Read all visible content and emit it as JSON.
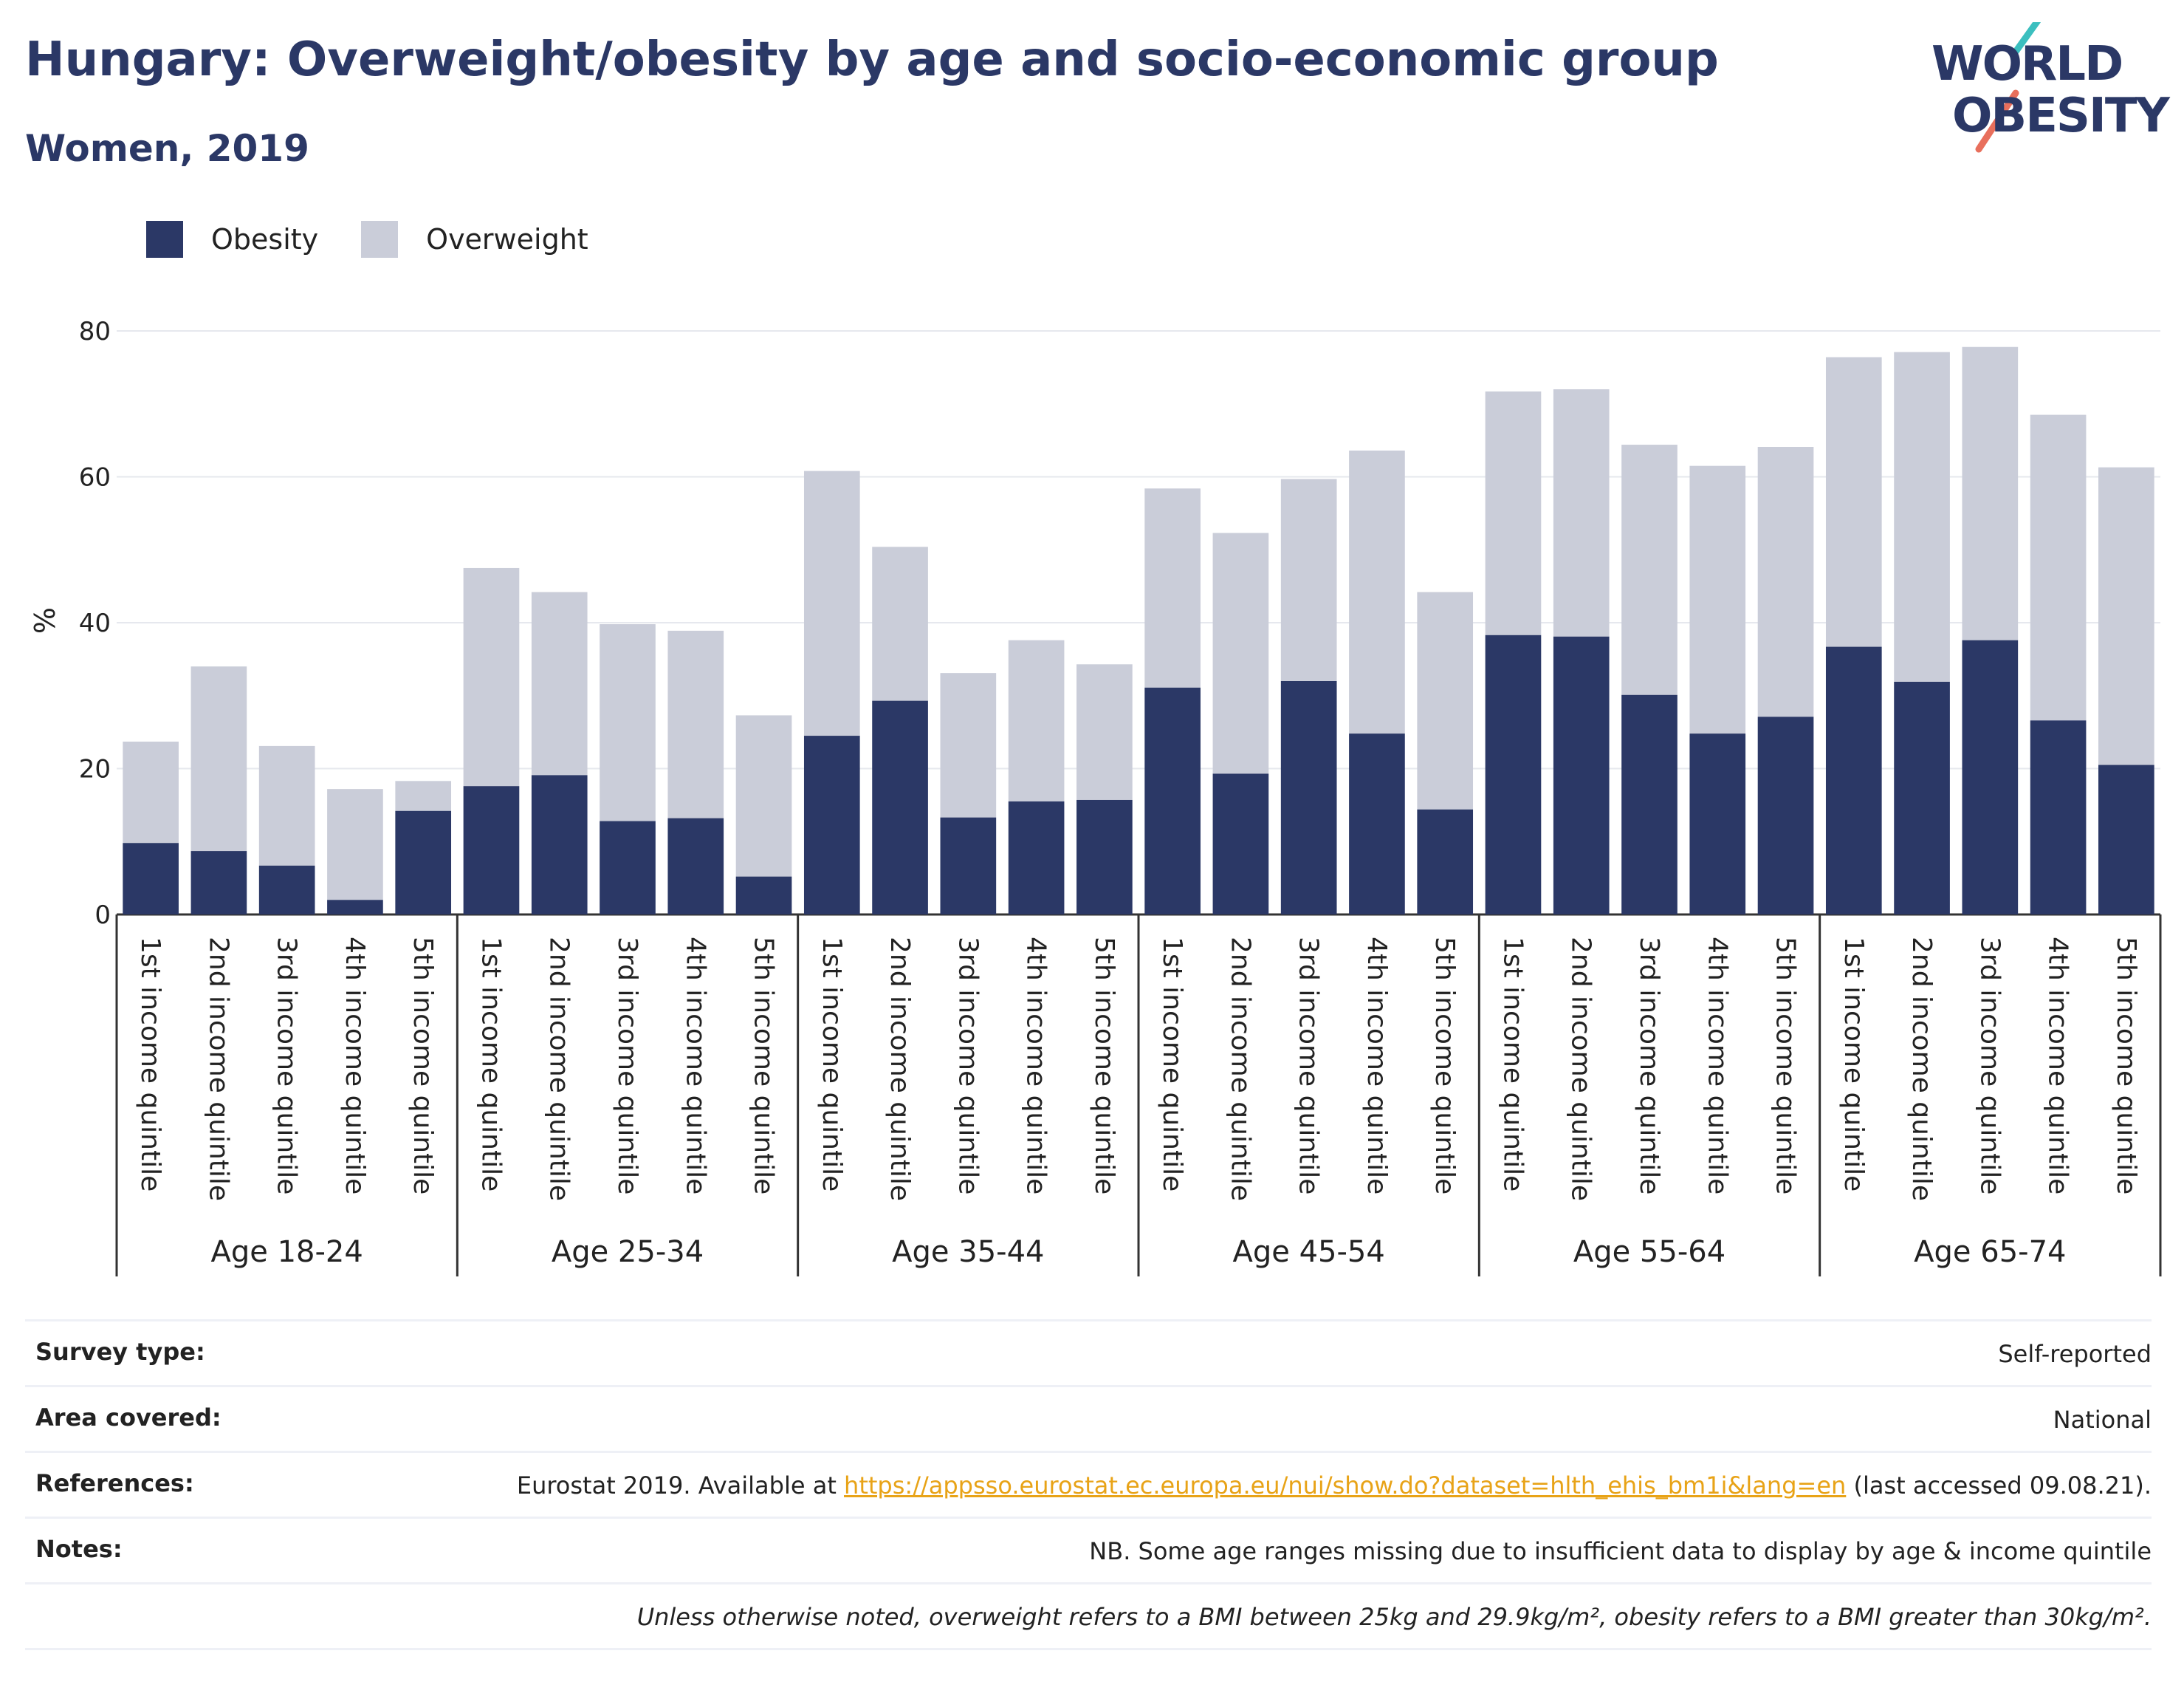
{
  "header": {
    "title": "Hungary: Overweight/obesity by age and socio-economic group",
    "subtitle": "Women, 2019"
  },
  "logo": {
    "line1": "WORLD",
    "line2": "OBESITY"
  },
  "colors": {
    "obesity": "#2b3866",
    "overweight": "#cacdd9",
    "accent_teal": "#3bbfbf",
    "accent_coral": "#e86f5c",
    "link": "#e8a317"
  },
  "legend": {
    "items": [
      {
        "label": "Obesity",
        "color": "#2b3866"
      },
      {
        "label": "Overweight",
        "color": "#cacdd9"
      }
    ]
  },
  "chart_data": {
    "type": "bar",
    "stacked": true,
    "ylabel": "%",
    "ylim": [
      0,
      80
    ],
    "yticks": [
      0,
      20,
      40,
      60,
      80
    ],
    "grid": true,
    "legend_position": "top-left",
    "groups": [
      "Age 18-24",
      "Age 25-34",
      "Age 35-44",
      "Age 45-54",
      "Age 55-64",
      "Age 65-74"
    ],
    "categories": [
      "1st income quintile",
      "2nd income quintile",
      "3rd income quintile",
      "4th income quintile",
      "5th income quintile"
    ],
    "series": [
      {
        "name": "Obesity",
        "values": [
          [
            9.8,
            8.7,
            6.7,
            2.0,
            14.2
          ],
          [
            17.6,
            19.1,
            12.8,
            13.2,
            5.2
          ],
          [
            24.5,
            29.3,
            13.3,
            15.5,
            15.7
          ],
          [
            31.1,
            19.3,
            32.0,
            24.8,
            14.4
          ],
          [
            38.3,
            38.1,
            30.1,
            24.8,
            27.1
          ],
          [
            36.7,
            31.9,
            37.6,
            26.6,
            20.5
          ]
        ]
      },
      {
        "name": "Overweight",
        "values": [
          [
            13.9,
            25.3,
            16.4,
            15.2,
            4.1
          ],
          [
            29.9,
            25.1,
            27.0,
            25.7,
            22.1
          ],
          [
            36.3,
            21.1,
            19.8,
            22.1,
            18.6
          ],
          [
            27.3,
            33.0,
            27.7,
            38.8,
            29.8
          ],
          [
            33.4,
            33.9,
            34.3,
            36.7,
            37.0
          ],
          [
            39.7,
            45.2,
            40.2,
            41.9,
            40.8
          ]
        ]
      }
    ]
  },
  "footer": {
    "rows": [
      {
        "label": "Survey type:",
        "value": "Self-reported"
      },
      {
        "label": "Area covered:",
        "value": "National"
      },
      {
        "label": "References:",
        "value_prefix": "Eurostat 2019. Available at ",
        "link": "https://appsso.eurostat.ec.europa.eu/nui/show.do?dataset=hlth_ehis_bm1i&lang=en",
        "value_suffix": " (last accessed 09.08.21)."
      },
      {
        "label": "Notes:",
        "value": "NB. Some age ranges missing due to insufficient data to display by age & income quintile"
      }
    ],
    "note": "Unless otherwise noted, overweight refers to a BMI between 25kg and 29.9kg/m², obesity refers to a BMI greater than 30kg/m²."
  }
}
